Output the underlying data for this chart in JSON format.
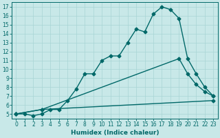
{
  "xlabel": "Humidex (Indice chaleur)",
  "bg_color": "#c8e8e8",
  "line_color": "#006868",
  "line1_x": [
    0,
    1,
    2,
    3,
    4,
    5,
    6,
    7,
    8,
    9,
    10,
    11,
    12,
    13,
    14,
    15,
    16,
    17,
    18,
    19,
    20,
    21,
    22,
    23
  ],
  "line1_y": [
    5.0,
    5.0,
    4.8,
    5.0,
    5.5,
    5.5,
    6.5,
    7.8,
    9.5,
    9.5,
    11.0,
    11.5,
    11.5,
    13.0,
    14.5,
    14.2,
    16.2,
    17.0,
    16.7,
    15.7,
    11.2,
    9.5,
    8.0,
    7.0
  ],
  "line2_x": [
    0,
    3,
    19,
    20,
    21,
    22,
    23
  ],
  "line2_y": [
    5.0,
    5.5,
    11.2,
    9.5,
    8.3,
    7.5,
    7.0
  ],
  "line3_x": [
    0,
    3,
    23
  ],
  "line3_y": [
    5.0,
    5.5,
    6.5
  ],
  "xlim": [
    -0.5,
    23.5
  ],
  "ylim": [
    4.5,
    17.5
  ],
  "yticks": [
    5,
    6,
    7,
    8,
    9,
    10,
    11,
    12,
    13,
    14,
    15,
    16,
    17
  ],
  "xticks": [
    0,
    1,
    2,
    3,
    4,
    5,
    6,
    7,
    8,
    9,
    10,
    11,
    12,
    13,
    14,
    15,
    16,
    17,
    18,
    19,
    20,
    21,
    22,
    23
  ],
  "marker": "D",
  "markersize": 2.5,
  "linewidth": 1.0,
  "grid_color": "#a8d4d4",
  "tick_fontsize": 5.5,
  "label_fontsize": 6.5
}
